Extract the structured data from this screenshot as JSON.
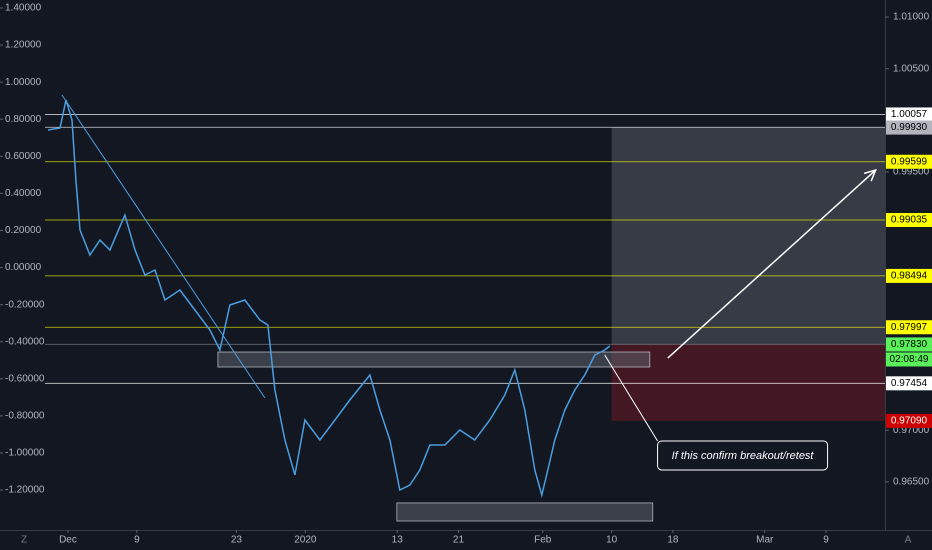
{
  "chart_data": {
    "type": "line",
    "color": "#4a9ee0",
    "x": [
      -2.61,
      -1.04,
      -0.26,
      0.52,
      1.04,
      1.57,
      2.87,
      4.18,
      5.48,
      7.44,
      8.75,
      10.05,
      11.36,
      12.66,
      14.62,
      16.58,
      18.54,
      19.84,
      21.15,
      23.11,
      25.07,
      26.11,
      27.02,
      28.33,
      29.63,
      30.94,
      32.9,
      34.86,
      36.81,
      39.43,
      40.73,
      42.04,
      43.34,
      44.65,
      45.95,
      47.26,
      49.22,
      51.17,
      53.13,
      55.09,
      57.05,
      58.36,
      59.66,
      60.97,
      61.88,
      62.66,
      63.58,
      64.88,
      66.19,
      67.49,
      68.8,
      70.1,
      70.76
    ],
    "values": [
      0.99906,
      0.99926,
      1.00197,
      1.00003,
      0.99422,
      0.98938,
      0.98696,
      0.98841,
      0.98745,
      0.99083,
      0.98745,
      0.98503,
      0.98551,
      0.98261,
      0.98357,
      0.98164,
      0.9797,
      0.97777,
      0.98212,
      0.98261,
      0.98067,
      0.98019,
      0.97389,
      0.96905,
      0.96567,
      0.97099,
      0.96905,
      0.97099,
      0.97293,
      0.97535,
      0.97196,
      0.96905,
      0.96421,
      0.9647,
      0.96615,
      0.96857,
      0.96857,
      0.97002,
      0.96905,
      0.97099,
      0.97341,
      0.97583,
      0.97196,
      0.96615,
      0.96373,
      0.96615,
      0.96905,
      0.97196,
      0.97389,
      0.97535,
      0.97728,
      0.97777,
      0.97815
    ],
    "xlim": [
      -3,
      106.7
    ],
    "xticks": [
      {
        "value": 0,
        "label": "Dec"
      },
      9,
      {
        "value": 22,
        "label": "23"
      },
      {
        "value": 31,
        "label": "2020"
      },
      {
        "value": 43,
        "label": "13"
      },
      {
        "value": 51,
        "label": "21"
      },
      {
        "value": 62,
        "label": "Feb"
      },
      {
        "value": 71,
        "label": "10"
      },
      {
        "value": 79,
        "label": "18"
      },
      {
        "value": 91,
        "label": "Mar"
      },
      {
        "value": 99,
        "label": "9"
      }
    ],
    "ylim": [
      0.96034,
      1.01165
    ],
    "yticks": [
      {
        "value": 1.01,
        "label": "1.01000"
      },
      {
        "value": 1.005,
        "label": "1.00500"
      },
      {
        "value": 0.995,
        "label": "0.99500"
      },
      {
        "value": 0.97,
        "label": "0.97000"
      },
      {
        "value": 0.965,
        "label": "0.96500"
      }
    ],
    "y2lim": [
      -1.4155,
      1.443
    ],
    "y2ticks": [
      {
        "value": 1.4,
        "label": "1.40000"
      },
      {
        "value": 1.2,
        "label": "1.20000"
      },
      {
        "value": 1,
        "label": "1.00000"
      },
      {
        "value": 0.8,
        "label": "0.80000"
      },
      {
        "value": 0.6,
        "label": "0.60000"
      },
      {
        "value": 0.4,
        "label": "0.40000"
      },
      {
        "value": 0.2,
        "label": "0.20000"
      },
      {
        "value": 0,
        "label": "0.00000"
      },
      {
        "value": -0.2,
        "label": "-0.20000"
      },
      {
        "value": -0.4,
        "label": "-0.40000"
      },
      {
        "value": -0.6,
        "label": "-0.60000"
      },
      {
        "value": -0.8,
        "label": "-0.80000"
      },
      {
        "value": -1,
        "label": "-1.00000"
      },
      {
        "value": -1.2,
        "label": "-1.20000"
      }
    ],
    "levels": [
      {
        "value": 1.00057,
        "color": "#ffffff"
      },
      {
        "value": 0.99933,
        "color": "#ffffff"
      },
      {
        "value": 0.99599,
        "color": "#ffff00"
      },
      {
        "value": 0.99035,
        "color": "#ffff00"
      },
      {
        "value": 0.98494,
        "color": "#ffff00"
      },
      {
        "value": 0.97997,
        "color": "#ffff00"
      },
      {
        "value": 0.97832,
        "color": "#8a8e97"
      },
      {
        "value": 0.97454,
        "color": "#ffffff"
      }
    ],
    "markers": [
      {
        "value": 0.9993,
        "label": "0.99930",
        "color": "#b2b5be"
      },
      {
        "value": 0.9783,
        "label": "0.97830",
        "color": "#5af05a"
      },
      {
        "value": 0.9709,
        "label": "0.97090",
        "color": "#cc0000"
      }
    ],
    "countdown": "02:08:49",
    "zones": [
      {
        "x": [
          71.0,
          106.7
        ],
        "y": [
          0.97832,
          0.99933
        ],
        "color": "#3c3f4a"
      },
      {
        "x": [
          71.0,
          106.7
        ],
        "y": [
          0.9709,
          0.97832
        ],
        "color": "#4a1822"
      },
      {
        "x": [
          19.58,
          75.98
        ],
        "y": [
          0.97612,
          0.97757
        ],
        "color": "#5d606b"
      },
      {
        "x": [
          42.95,
          76.37
        ],
        "y": [
          0.96121,
          0.96296
        ],
        "color": "#5d606b"
      }
    ],
    "trendline": {
      "x": [
        -0.78,
        25.72
      ],
      "y": [
        1.00245,
        0.97312
      ]
    },
    "arrow": {
      "x": [
        78.33,
        105.48
      ],
      "y": [
        0.97699,
        0.99519
      ]
    },
    "annotation": {
      "text": "If this confirm breakout/retest",
      "x": [
        70.1,
        77.0
      ],
      "y": [
        0.97728,
        0.96896
      ]
    },
    "corner_left": "Z",
    "corner_right": "A"
  }
}
